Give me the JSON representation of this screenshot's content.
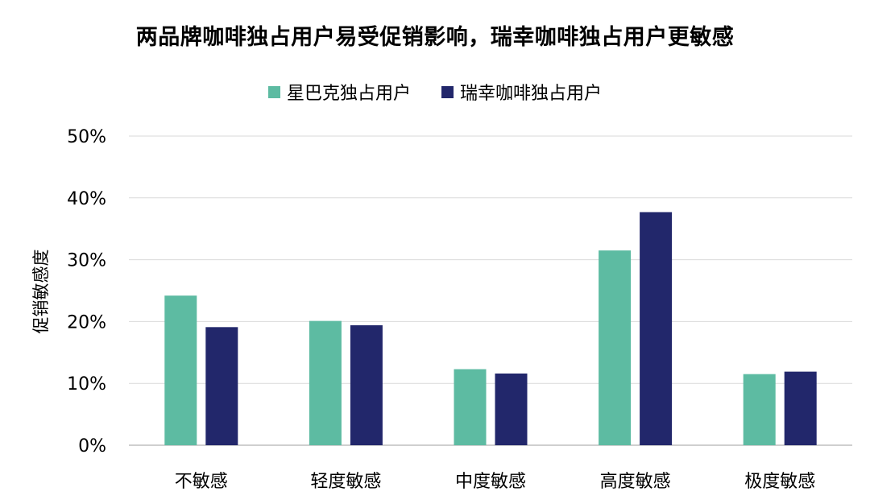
{
  "chart_data": {
    "type": "bar",
    "title": "两品牌咖啡独占用户易受促销影响，瑞幸咖啡独占用户更敏感",
    "ylabel": "促销敏感度",
    "xlabel": "",
    "categories": [
      "不敏感",
      "轻度敏感",
      "中度敏感",
      "高度敏感",
      "极度敏感"
    ],
    "series": [
      {
        "name": "星巴克独占用户",
        "color": "#5dbba2",
        "values": [
          24.2,
          20.1,
          12.3,
          31.5,
          11.5
        ]
      },
      {
        "name": "瑞幸咖啡独占用户",
        "color": "#22276b",
        "values": [
          19.1,
          19.4,
          11.6,
          37.7,
          11.9
        ]
      }
    ],
    "ylim": [
      0,
      50
    ],
    "yticks": [
      0,
      10,
      20,
      30,
      40,
      50
    ],
    "ytick_labels": [
      "0%",
      "10%",
      "20%",
      "30%",
      "40%",
      "50%"
    ],
    "grid": true,
    "legend_position": "top-center"
  }
}
